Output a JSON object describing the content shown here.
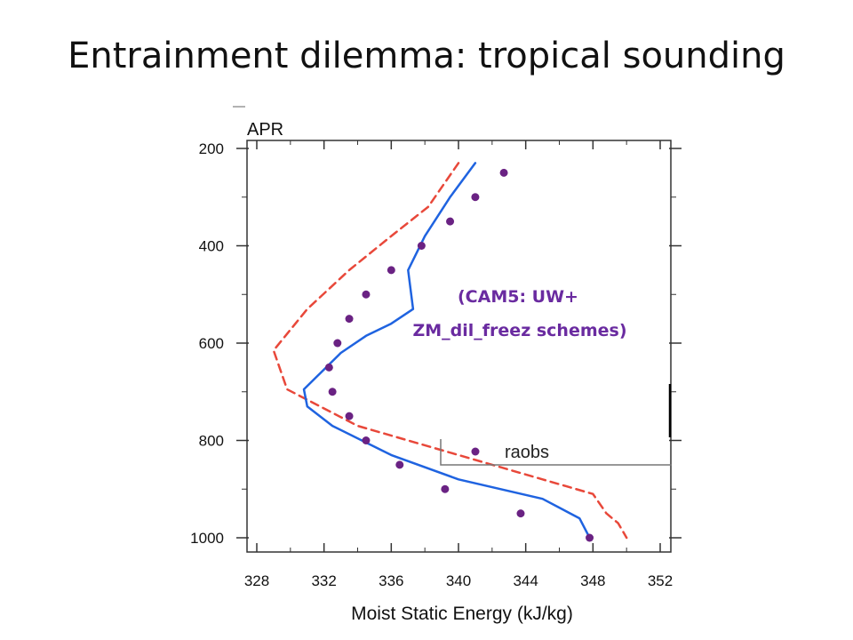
{
  "slide": {
    "title": "Entrainment dilemma: tropical sounding"
  },
  "chart_data": {
    "type": "line",
    "panel_label": "APR",
    "xlabel": "Moist Static Energy (kJ/kg)",
    "ylabel": "",
    "xlim": [
      328,
      352
    ],
    "ylim": [
      1000,
      200
    ],
    "y_inverted": true,
    "x_ticks": [
      328,
      332,
      336,
      340,
      344,
      348,
      352
    ],
    "y_ticks": [
      200,
      400,
      600,
      800,
      1000
    ],
    "annotation": [
      "(CAM5: UW+",
      "ZM_dil_freez schemes)"
    ],
    "legend": {
      "placement": "lower-right",
      "entries": [
        {
          "label": "raobs"
        }
      ]
    },
    "series": [
      {
        "style": "dashed",
        "color": "#e8483a",
        "points": [
          [
            340.0,
            230
          ],
          [
            338.2,
            320
          ],
          [
            336.0,
            380
          ],
          [
            333.5,
            450
          ],
          [
            331.0,
            530
          ],
          [
            329.0,
            615
          ],
          [
            329.8,
            695
          ],
          [
            334.0,
            770
          ],
          [
            340.0,
            830
          ],
          [
            345.0,
            880
          ],
          [
            348.0,
            910
          ],
          [
            348.8,
            950
          ],
          [
            349.5,
            970
          ],
          [
            350.0,
            1000
          ]
        ]
      },
      {
        "style": "solid",
        "color": "#1f63e0",
        "points": [
          [
            341.0,
            230
          ],
          [
            339.5,
            300
          ],
          [
            338.0,
            380
          ],
          [
            337.0,
            450
          ],
          [
            337.3,
            530
          ],
          [
            336.0,
            560
          ],
          [
            334.5,
            585
          ],
          [
            333.0,
            620
          ],
          [
            330.8,
            695
          ],
          [
            331.0,
            730
          ],
          [
            332.5,
            770
          ],
          [
            336.0,
            830
          ],
          [
            340.0,
            880
          ],
          [
            345.0,
            920
          ],
          [
            347.2,
            960
          ],
          [
            347.8,
            1000
          ]
        ]
      },
      {
        "name": "raobs",
        "style": "markers",
        "color": "#6a2283",
        "points": [
          [
            342.7,
            250
          ],
          [
            341.0,
            300
          ],
          [
            339.5,
            350
          ],
          [
            337.8,
            400
          ],
          [
            336.0,
            450
          ],
          [
            334.5,
            500
          ],
          [
            333.5,
            550
          ],
          [
            332.8,
            600
          ],
          [
            332.3,
            650
          ],
          [
            332.5,
            700
          ],
          [
            333.5,
            750
          ],
          [
            334.5,
            800
          ],
          [
            336.5,
            850
          ],
          [
            339.2,
            900
          ],
          [
            343.7,
            950
          ],
          [
            347.8,
            1000
          ]
        ]
      }
    ]
  }
}
